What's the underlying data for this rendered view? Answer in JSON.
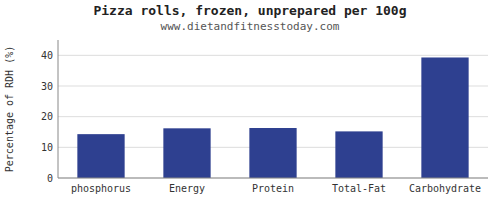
{
  "chart_data": {
    "type": "bar",
    "title": "Pizza rolls, frozen, unprepared per 100g",
    "subtitle": "www.dietandfitnesstoday.com",
    "categories": [
      "phosphorus",
      "Energy",
      "Protein",
      "Total-Fat",
      "Carbohydrate"
    ],
    "values": [
      14.3,
      16.2,
      16.3,
      15.2,
      39.3
    ],
    "color": "#2e4090",
    "ylabel": "Percentage of RDH (%)",
    "ylim": [
      0,
      45
    ],
    "yticks": [
      0,
      10,
      20,
      30,
      40
    ],
    "grid": true
  }
}
